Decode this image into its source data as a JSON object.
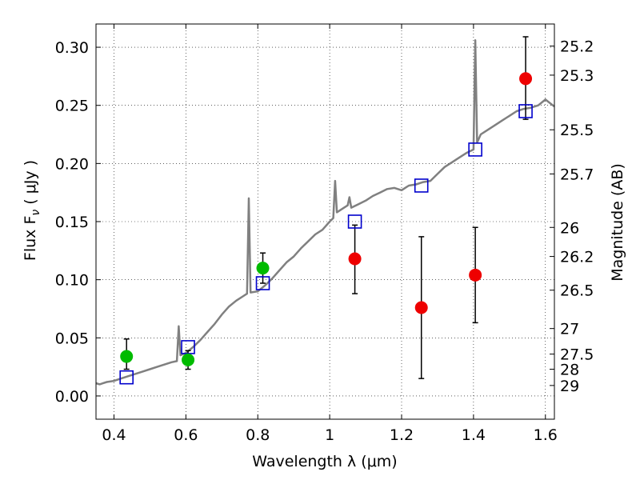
{
  "chart_data": {
    "type": "scatter",
    "title": "",
    "xlabel": "Wavelength  λ (μm)",
    "ylabel": "Flux  F",
    "ylabel_sub": "ν",
    "ylabel_unit": "  ( μJy )",
    "y2label": "Magnitude (AB)",
    "xlim": [
      0.35,
      1.625
    ],
    "ylim": [
      -0.02,
      0.32
    ],
    "grid": true,
    "x_ticks": [
      {
        "value": 0.4,
        "label": "0.4"
      },
      {
        "value": 0.6,
        "label": "0.6"
      },
      {
        "value": 0.8,
        "label": "0.8"
      },
      {
        "value": 1.0,
        "label": "1"
      },
      {
        "value": 1.2,
        "label": "1.2"
      },
      {
        "value": 1.4,
        "label": "1.4"
      },
      {
        "value": 1.6,
        "label": "1.6"
      }
    ],
    "y_ticks": [
      {
        "value": 0.0,
        "label": "0.00"
      },
      {
        "value": 0.05,
        "label": "0.05"
      },
      {
        "value": 0.1,
        "label": "0.10"
      },
      {
        "value": 0.15,
        "label": "0.15"
      },
      {
        "value": 0.2,
        "label": "0.20"
      },
      {
        "value": 0.25,
        "label": "0.25"
      },
      {
        "value": 0.3,
        "label": "0.30"
      }
    ],
    "y2_ticks": [
      {
        "flux": 0.301,
        "label": "25.2"
      },
      {
        "flux": 0.276,
        "label": "25.3"
      },
      {
        "flux": 0.229,
        "label": "25.5"
      },
      {
        "flux": 0.191,
        "label": "25.7"
      },
      {
        "flux": 0.145,
        "label": "26"
      },
      {
        "flux": 0.12,
        "label": "26.2"
      },
      {
        "flux": 0.091,
        "label": "26.5"
      },
      {
        "flux": 0.058,
        "label": "27"
      },
      {
        "flux": 0.036,
        "label": "27.5"
      },
      {
        "flux": 0.023,
        "label": "28"
      },
      {
        "flux": 0.009,
        "label": "29"
      }
    ],
    "model_spectrum": {
      "color": "#808080",
      "points": [
        [
          0.35,
          0.011
        ],
        [
          0.36,
          0.01
        ],
        [
          0.38,
          0.012
        ],
        [
          0.4,
          0.013
        ],
        [
          0.42,
          0.015
        ],
        [
          0.44,
          0.017
        ],
        [
          0.46,
          0.019
        ],
        [
          0.48,
          0.021
        ],
        [
          0.5,
          0.023
        ],
        [
          0.52,
          0.025
        ],
        [
          0.54,
          0.027
        ],
        [
          0.56,
          0.029
        ],
        [
          0.575,
          0.03
        ],
        [
          0.58,
          0.06
        ],
        [
          0.585,
          0.035
        ],
        [
          0.6,
          0.037
        ],
        [
          0.62,
          0.042
        ],
        [
          0.64,
          0.048
        ],
        [
          0.66,
          0.055
        ],
        [
          0.68,
          0.062
        ],
        [
          0.7,
          0.07
        ],
        [
          0.72,
          0.077
        ],
        [
          0.74,
          0.082
        ],
        [
          0.76,
          0.086
        ],
        [
          0.77,
          0.088
        ],
        [
          0.775,
          0.17
        ],
        [
          0.78,
          0.089
        ],
        [
          0.8,
          0.09
        ],
        [
          0.82,
          0.095
        ],
        [
          0.84,
          0.101
        ],
        [
          0.86,
          0.108
        ],
        [
          0.88,
          0.115
        ],
        [
          0.9,
          0.12
        ],
        [
          0.92,
          0.127
        ],
        [
          0.94,
          0.133
        ],
        [
          0.96,
          0.139
        ],
        [
          0.98,
          0.143
        ],
        [
          1.0,
          0.15
        ],
        [
          1.01,
          0.153
        ],
        [
          1.015,
          0.185
        ],
        [
          1.02,
          0.158
        ],
        [
          1.04,
          0.162
        ],
        [
          1.05,
          0.164
        ],
        [
          1.055,
          0.171
        ],
        [
          1.06,
          0.162
        ],
        [
          1.08,
          0.165
        ],
        [
          1.1,
          0.168
        ],
        [
          1.12,
          0.172
        ],
        [
          1.14,
          0.175
        ],
        [
          1.16,
          0.178
        ],
        [
          1.18,
          0.179
        ],
        [
          1.2,
          0.177
        ],
        [
          1.22,
          0.181
        ],
        [
          1.24,
          0.182
        ],
        [
          1.26,
          0.184
        ],
        [
          1.28,
          0.185
        ],
        [
          1.3,
          0.191
        ],
        [
          1.32,
          0.197
        ],
        [
          1.34,
          0.201
        ],
        [
          1.36,
          0.205
        ],
        [
          1.38,
          0.209
        ],
        [
          1.4,
          0.212
        ],
        [
          1.405,
          0.306
        ],
        [
          1.41,
          0.218
        ],
        [
          1.42,
          0.225
        ],
        [
          1.44,
          0.229
        ],
        [
          1.46,
          0.233
        ],
        [
          1.48,
          0.237
        ],
        [
          1.5,
          0.241
        ],
        [
          1.52,
          0.245
        ],
        [
          1.54,
          0.247
        ],
        [
          1.56,
          0.248
        ],
        [
          1.58,
          0.25
        ],
        [
          1.6,
          0.255
        ],
        [
          1.625,
          0.249
        ]
      ]
    },
    "series": [
      {
        "marker": "square",
        "color": "#0000cc",
        "points": [
          {
            "x": 0.435,
            "y": 0.016
          },
          {
            "x": 0.606,
            "y": 0.042
          },
          {
            "x": 0.814,
            "y": 0.097
          },
          {
            "x": 1.07,
            "y": 0.15
          },
          {
            "x": 1.255,
            "y": 0.181
          },
          {
            "x": 1.405,
            "y": 0.212
          },
          {
            "x": 1.545,
            "y": 0.245
          }
        ]
      },
      {
        "marker": "circle",
        "color": "#00bb00",
        "points": [
          {
            "x": 0.435,
            "y": 0.034,
            "yerr_low": 0.011,
            "yerr_high": 0.015
          },
          {
            "x": 0.606,
            "y": 0.031,
            "yerr_low": 0.008,
            "yerr_high": 0.008
          },
          {
            "x": 0.814,
            "y": 0.11,
            "yerr_low": 0.013,
            "yerr_high": 0.013
          }
        ]
      },
      {
        "marker": "circle",
        "color": "#ee0000",
        "points": [
          {
            "x": 1.07,
            "y": 0.118,
            "yerr_low": 0.03,
            "yerr_high": 0.029
          },
          {
            "x": 1.255,
            "y": 0.076,
            "yerr_low": 0.061,
            "yerr_high": 0.061
          },
          {
            "x": 1.405,
            "y": 0.104,
            "yerr_low": 0.041,
            "yerr_high": 0.041
          },
          {
            "x": 1.545,
            "y": 0.273,
            "yerr_low": 0.035,
            "yerr_high": 0.036
          }
        ]
      }
    ],
    "errorbar_color": "#000000"
  }
}
